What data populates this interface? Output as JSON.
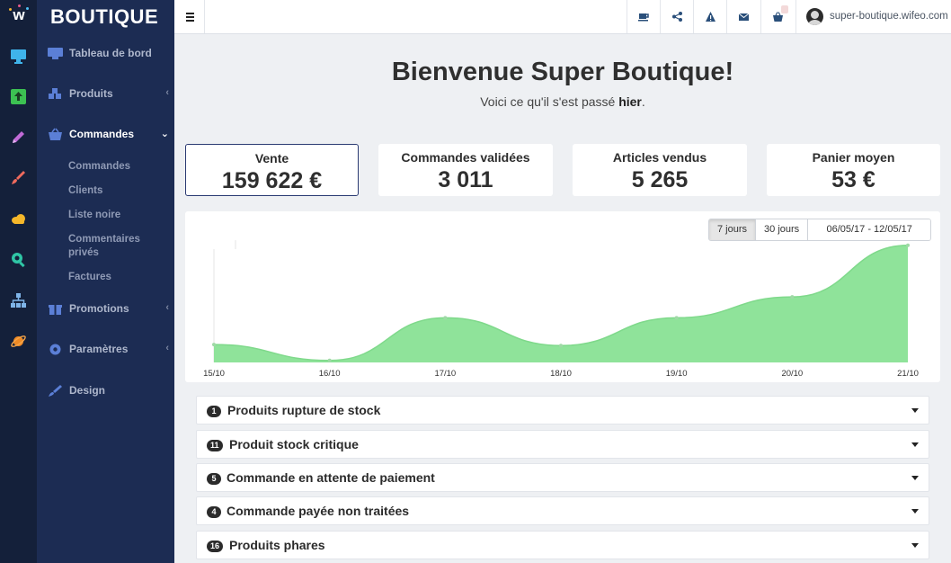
{
  "rail": {
    "logo_letter": "w",
    "icons": [
      "monitor-icon",
      "upload-icon",
      "pencil-icon",
      "brush-icon",
      "cloud-icon",
      "search-icon",
      "sitemap-icon",
      "planet-icon"
    ]
  },
  "sidebar": {
    "brand": "BOUTIQUE",
    "items": [
      {
        "label": "Tableau de bord",
        "icon": "monitor-icon"
      },
      {
        "label": "Produits",
        "icon": "cubes-icon"
      },
      {
        "label": "Commandes",
        "icon": "basket-icon"
      },
      {
        "label": "Promotions",
        "icon": "gift-icon"
      },
      {
        "label": "Paramètres",
        "icon": "gear-icon"
      },
      {
        "label": "Design",
        "icon": "brush-icon"
      }
    ],
    "sub_items": [
      "Commandes",
      "Clients",
      "Liste noire",
      "Commentaires privés",
      "Factures"
    ]
  },
  "topbar": {
    "icons": [
      "coffee-icon",
      "share-icon",
      "warning-icon",
      "envelope-icon",
      "basket-icon"
    ],
    "user_name": "super-boutique.wifeo.com"
  },
  "welcome": {
    "title": "Bienvenue Super Boutique!",
    "subtitle_prefix": "Voici ce qu'il s'est passé ",
    "subtitle_bold": "hier",
    "subtitle_suffix": "."
  },
  "stats": [
    {
      "label": "Vente",
      "value": "159 622 €",
      "active": true
    },
    {
      "label": "Commandes validées",
      "value": "3 011",
      "active": false
    },
    {
      "label": "Articles vendus",
      "value": "5 265",
      "active": false
    },
    {
      "label": "Panier moyen",
      "value": "53 €",
      "active": false
    }
  ],
  "chart_controls": {
    "range_7": "7 jours",
    "range_30": "30 jours",
    "date_range": "06/05/17 - 12/05/17"
  },
  "chart_data": {
    "type": "area",
    "categories": [
      "15/10",
      "16/10",
      "17/10",
      "18/10",
      "19/10",
      "20/10",
      "21/10"
    ],
    "values": [
      18,
      2,
      45,
      17,
      45,
      66,
      118
    ],
    "ylim": [
      0,
      125
    ],
    "grid": false,
    "colors": {
      "fill": "#8fe39a",
      "line": "#7fd98b"
    }
  },
  "accordion": [
    {
      "count": "1",
      "title": "Produits rupture de stock"
    },
    {
      "count": "11",
      "title": "Produit stock critique"
    },
    {
      "count": "5",
      "title": "Commande en attente de paiement"
    },
    {
      "count": "4",
      "title": "Commande payée non traitées"
    },
    {
      "count": "16",
      "title": "Produits phares"
    }
  ]
}
